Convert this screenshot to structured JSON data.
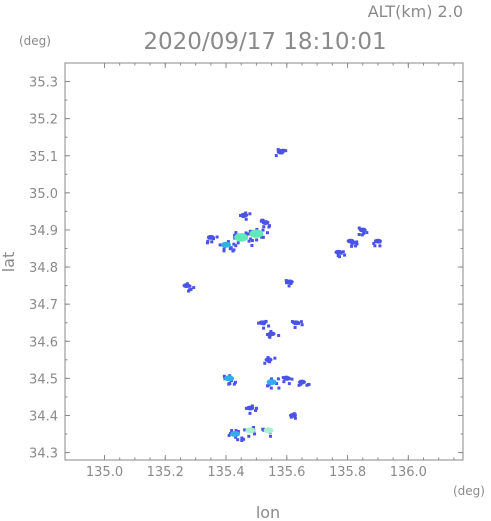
{
  "chart_data": {
    "type": "heatmap",
    "title": "2020/09/17 18:10:01",
    "altitude_label": "ALT(km) 2.0",
    "xlabel": "lon",
    "ylabel": "lat",
    "x_unit": "(deg)",
    "y_unit": "(deg)",
    "xlim": [
      134.87,
      136.18
    ],
    "ylim": [
      34.28,
      35.35
    ],
    "x_ticks": [
      "135.0",
      "135.2",
      "135.4",
      "135.6",
      "135.8",
      "136.0"
    ],
    "y_ticks": [
      "34.3",
      "34.4",
      "34.5",
      "34.6",
      "34.7",
      "34.8",
      "34.9",
      "35.0",
      "35.1",
      "35.2",
      "35.3"
    ],
    "grid": false,
    "colors": {
      "axis": "#8a8a8a",
      "low": "#4a52e8",
      "mid": "#2fb0e8",
      "high": "#5fe8b8",
      "bright": "#a8f0d0"
    },
    "echo_cells": [
      {
        "lon": 135.45,
        "lat": 34.88,
        "intensity": "high"
      },
      {
        "lon": 135.5,
        "lat": 34.89,
        "intensity": "high"
      },
      {
        "lon": 135.4,
        "lat": 34.86,
        "intensity": "mid"
      },
      {
        "lon": 135.35,
        "lat": 34.88,
        "intensity": "low"
      },
      {
        "lon": 135.53,
        "lat": 34.92,
        "intensity": "low"
      },
      {
        "lon": 135.46,
        "lat": 34.94,
        "intensity": "low"
      },
      {
        "lon": 135.58,
        "lat": 35.11,
        "intensity": "low"
      },
      {
        "lon": 135.85,
        "lat": 34.9,
        "intensity": "low"
      },
      {
        "lon": 135.9,
        "lat": 34.87,
        "intensity": "low"
      },
      {
        "lon": 135.81,
        "lat": 34.87,
        "intensity": "low"
      },
      {
        "lon": 135.27,
        "lat": 34.75,
        "intensity": "low"
      },
      {
        "lon": 135.52,
        "lat": 34.65,
        "intensity": "low"
      },
      {
        "lon": 135.55,
        "lat": 34.62,
        "intensity": "low"
      },
      {
        "lon": 135.63,
        "lat": 34.65,
        "intensity": "low"
      },
      {
        "lon": 135.54,
        "lat": 34.55,
        "intensity": "low"
      },
      {
        "lon": 135.55,
        "lat": 34.49,
        "intensity": "mid"
      },
      {
        "lon": 135.6,
        "lat": 34.5,
        "intensity": "low"
      },
      {
        "lon": 135.65,
        "lat": 34.49,
        "intensity": "low"
      },
      {
        "lon": 135.41,
        "lat": 34.5,
        "intensity": "mid"
      },
      {
        "lon": 135.48,
        "lat": 34.42,
        "intensity": "low"
      },
      {
        "lon": 135.62,
        "lat": 34.4,
        "intensity": "low"
      },
      {
        "lon": 135.43,
        "lat": 34.35,
        "intensity": "mid"
      },
      {
        "lon": 135.48,
        "lat": 34.36,
        "intensity": "bright"
      },
      {
        "lon": 135.54,
        "lat": 34.36,
        "intensity": "bright"
      },
      {
        "lon": 135.61,
        "lat": 34.76,
        "intensity": "low"
      },
      {
        "lon": 135.77,
        "lat": 34.84,
        "intensity": "low"
      }
    ]
  }
}
